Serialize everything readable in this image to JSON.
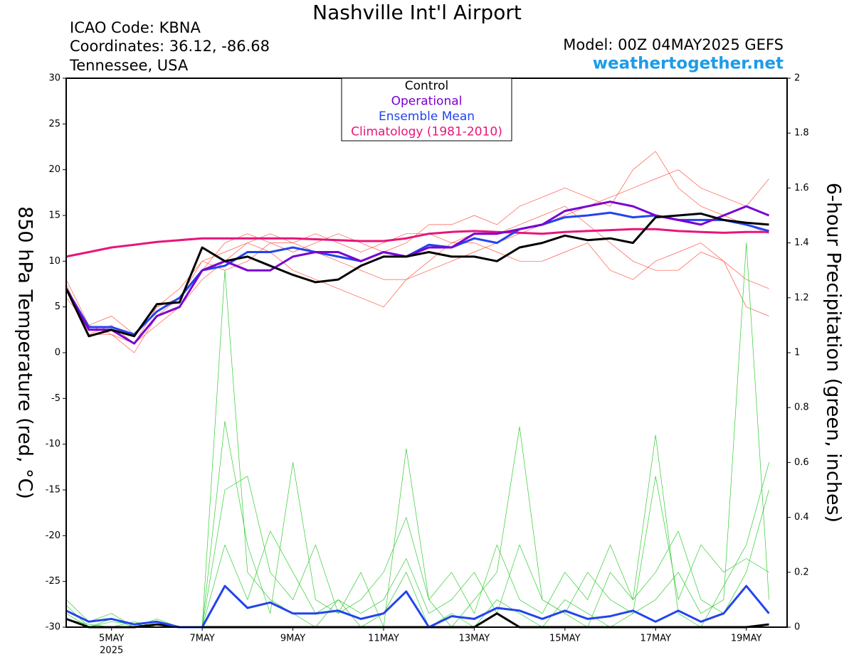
{
  "chart_data": {
    "type": "line",
    "title": "Nashville Int'l Airport",
    "info_left": [
      "ICAO Code: KBNA",
      "Coordinates: 36.12, -86.68",
      "Tennessee, USA"
    ],
    "model": "Model: 00Z 04MAY2025 GEFS",
    "site": "weathertogether.net",
    "y_label": "850 hPa Temperature (red, °C)",
    "y2_label": "6-hour Precipitation (green, inches)",
    "x_sublabel": "2025",
    "x": [
      0,
      0.5,
      1,
      1.5,
      2,
      2.5,
      3,
      3.5,
      4,
      4.5,
      5,
      5.5,
      6,
      6.5,
      7,
      7.5,
      8,
      8.5,
      9,
      9.5,
      10,
      10.5,
      11,
      11.5,
      12,
      12.5,
      13,
      13.5,
      14,
      14.5,
      15,
      15.5
    ],
    "xlim": [
      0,
      15.9
    ],
    "xticks": [
      {
        "value": 1,
        "label": "5MAY"
      },
      {
        "value": 3,
        "label": "7MAY"
      },
      {
        "value": 5,
        "label": "9MAY"
      },
      {
        "value": 7,
        "label": "11MAY"
      },
      {
        "value": 9,
        "label": "13MAY"
      },
      {
        "value": 11,
        "label": "15MAY"
      },
      {
        "value": 13,
        "label": "17MAY"
      },
      {
        "value": 15,
        "label": "19MAY"
      }
    ],
    "ylim": [
      -30,
      30
    ],
    "yticks": [
      -30,
      -25,
      -20,
      -15,
      -10,
      -5,
      0,
      5,
      10,
      15,
      20,
      25,
      30
    ],
    "y2lim": [
      0,
      2
    ],
    "y2ticks": [
      0,
      0.2,
      0.4,
      0.6,
      0.8,
      1,
      1.2,
      1.4,
      1.6,
      1.8,
      2
    ],
    "series": [
      {
        "color": "#ff5a4a",
        "width": 0.7,
        "values": [
          7.5,
          2,
          3,
          1,
          5,
          6,
          10,
          11,
          12,
          13,
          12,
          11,
          10,
          9,
          8,
          8,
          9,
          10,
          11,
          12,
          13,
          14,
          15,
          16,
          17,
          18,
          19,
          20,
          18,
          17,
          16,
          19
        ]
      },
      {
        "color": "#ff5a4a",
        "width": 0.7,
        "values": [
          6,
          3,
          2,
          0,
          4,
          6,
          9,
          12,
          13,
          12,
          12,
          13,
          12,
          11,
          12,
          13,
          13,
          12,
          12,
          11,
          10,
          10,
          11,
          12,
          9,
          8,
          10,
          11,
          12,
          10,
          5,
          4
        ]
      },
      {
        "color": "#ff5a4a",
        "width": 0.7,
        "values": [
          8,
          3,
          4,
          2,
          5,
          7,
          10,
          9,
          10,
          12,
          11,
          12,
          13,
          12,
          11,
          12,
          14,
          14,
          15,
          14,
          16,
          17,
          18,
          17,
          16,
          20,
          22,
          18,
          16,
          15,
          14,
          13
        ]
      },
      {
        "color": "#ff5a4a",
        "width": 0.7,
        "values": [
          7,
          2,
          2,
          1,
          3,
          5,
          8,
          10,
          12,
          11,
          9,
          8,
          7,
          6,
          5,
          8,
          10,
          12,
          13,
          13,
          14,
          15,
          16,
          14,
          12,
          10,
          9,
          9,
          11,
          10,
          8,
          7
        ]
      },
      {
        "color": "#33cc33",
        "width": 0.7,
        "axis": "y2",
        "values": [
          0.05,
          0,
          0.03,
          0,
          0,
          0,
          0,
          1.3,
          0.2,
          0.1,
          0.05,
          0,
          0.1,
          0,
          0.05,
          0.2,
          0,
          0.05,
          0,
          0.1,
          0.05,
          0,
          0.1,
          0.05,
          0,
          0.05,
          0.1,
          0.2,
          0.05,
          0.1,
          1.4,
          0.1
        ]
      },
      {
        "color": "#33cc33",
        "width": 0.7,
        "axis": "y2",
        "values": [
          0.1,
          0.02,
          0.05,
          0,
          0.03,
          0,
          0,
          0.75,
          0.3,
          0.05,
          0.6,
          0.1,
          0.05,
          0.2,
          0,
          0.65,
          0.1,
          0,
          0.1,
          0.2,
          0.73,
          0.1,
          0.05,
          0,
          0.2,
          0.1,
          0.7,
          0.05,
          0,
          0.15,
          0.3,
          0.6
        ]
      },
      {
        "color": "#33cc33",
        "width": 0.7,
        "axis": "y2",
        "values": [
          0.08,
          0,
          0.02,
          0.01,
          0,
          0,
          0,
          0.5,
          0.55,
          0.2,
          0.1,
          0.3,
          0.05,
          0.1,
          0.2,
          0.4,
          0.1,
          0.2,
          0.05,
          0.3,
          0.1,
          0.05,
          0.2,
          0.1,
          0.3,
          0.1,
          0.2,
          0.35,
          0.1,
          0.05,
          0.2,
          0.5
        ]
      },
      {
        "color": "#33cc33",
        "width": 0.7,
        "axis": "y2",
        "values": [
          0.03,
          0.01,
          0,
          0.02,
          0,
          0,
          0,
          0.3,
          0.1,
          0.35,
          0.2,
          0.05,
          0.1,
          0.05,
          0.1,
          0.25,
          0.05,
          0.1,
          0.2,
          0.05,
          0.3,
          0.1,
          0.05,
          0.2,
          0.1,
          0.05,
          0.55,
          0.1,
          0.3,
          0.2,
          0.25,
          0.2
        ]
      },
      {
        "color": "#000000",
        "width": 3,
        "axis": "y2",
        "values": [
          0.03,
          0,
          0,
          0,
          0.01,
          0,
          0,
          0,
          0,
          0,
          0,
          0,
          0,
          0,
          0,
          0,
          0,
          0,
          0,
          0.05,
          0,
          0,
          0,
          0,
          0,
          0,
          0,
          0,
          0,
          0,
          0,
          0.01
        ]
      },
      {
        "color": "#2244ee",
        "width": 3,
        "axis": "y2",
        "values": [
          0.06,
          0.02,
          0.03,
          0.01,
          0.02,
          0,
          0,
          0.15,
          0.07,
          0.09,
          0.05,
          0.05,
          0.06,
          0.03,
          0.05,
          0.13,
          0,
          0.04,
          0.03,
          0.07,
          0.06,
          0.03,
          0.06,
          0.03,
          0.04,
          0.06,
          0.02,
          0.06,
          0.02,
          0.05,
          0.15,
          0.05
        ]
      },
      {
        "name": "Climatology (1981-2010)",
        "color": "#e8157a",
        "width": 3,
        "values": [
          10.5,
          11,
          11.5,
          11.8,
          12.1,
          12.3,
          12.5,
          12.5,
          12.5,
          12.5,
          12.5,
          12.4,
          12.3,
          12.2,
          12.2,
          12.5,
          13,
          13.2,
          13.3,
          13.2,
          13.1,
          13,
          13.2,
          13.3,
          13.4,
          13.5,
          13.5,
          13.3,
          13.2,
          13.1,
          13.2,
          13.2
        ]
      },
      {
        "name": "Ensemble Mean",
        "color": "#2244ee",
        "width": 3,
        "values": [
          7,
          2.8,
          2.8,
          2,
          4.5,
          6,
          9,
          9.5,
          11,
          11,
          11.5,
          11,
          10.5,
          10,
          11,
          10.5,
          11.8,
          11.5,
          12.5,
          12,
          13.5,
          14,
          14.8,
          15,
          15.3,
          14.8,
          15,
          14.5,
          14.5,
          14.5,
          14,
          13.3
        ]
      },
      {
        "name": "Operational",
        "color": "#7a00d0",
        "width": 3,
        "values": [
          7,
          2.5,
          2.5,
          1,
          4,
          5,
          9,
          10,
          9,
          9,
          10.5,
          11,
          11,
          10,
          11,
          10.5,
          11.5,
          11.5,
          13,
          13,
          13.5,
          14,
          15.5,
          16,
          16.5,
          16,
          15,
          14.5,
          14,
          15,
          16,
          15
        ]
      },
      {
        "name": "Control",
        "color": "#000000",
        "width": 3,
        "values": [
          7,
          1.8,
          2.5,
          1.8,
          5.3,
          5.5,
          11.5,
          10,
          10.5,
          9.5,
          8.5,
          7.7,
          8,
          9.5,
          10.5,
          10.5,
          11,
          10.5,
          10.5,
          10,
          11.5,
          12,
          12.8,
          12.3,
          12.5,
          12,
          14.8,
          15,
          15.2,
          14.5,
          14.2,
          14
        ]
      }
    ]
  }
}
